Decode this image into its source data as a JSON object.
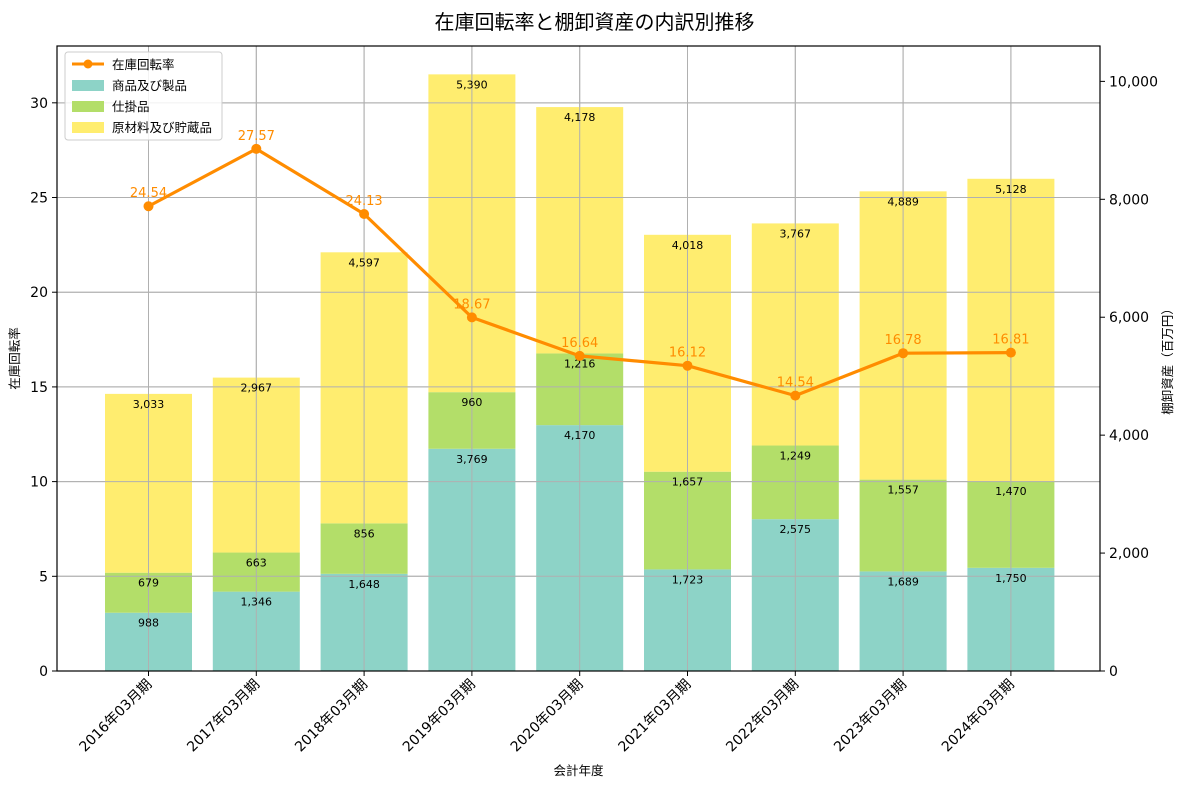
{
  "chart_data": {
    "type": "bar",
    "subtype": "stacked bar + line (dual axis)",
    "title": "在庫回転率と棚卸資産の内訳別推移",
    "xlabel": "会計年度",
    "ylabel": "在庫回転率",
    "ylabel_right": "棚卸資産（百万円）",
    "ylim": [
      0,
      33
    ],
    "ylim_right": [
      0,
      10600
    ],
    "yticks": [
      0,
      5,
      10,
      15,
      20,
      25,
      30
    ],
    "yticks_right": [
      "0",
      "2,000",
      "4,000",
      "6,000",
      "8,000",
      "10,000"
    ],
    "yticks_right_values": [
      0,
      2000,
      4000,
      6000,
      8000,
      10000
    ],
    "grid": true,
    "legend_position": "upper left",
    "categories": [
      "2016年03月期",
      "2017年03月期",
      "2018年03月期",
      "2019年03月期",
      "2020年03月期",
      "2021年03月期",
      "2022年03月期",
      "2023年03月期",
      "2024年03月期"
    ],
    "series": [
      {
        "name": "商品及び製品",
        "type": "bar",
        "axis": "right",
        "color": "#8dd3c7",
        "values": [
          988,
          1346,
          1648,
          3769,
          4170,
          1723,
          2575,
          1689,
          1750
        ],
        "labels": [
          "988",
          "1,346",
          "1,648",
          "3,769",
          "4,170",
          "1,723",
          "2,575",
          "1,689",
          "1,750"
        ]
      },
      {
        "name": "仕掛品",
        "type": "bar",
        "axis": "right",
        "color": "#b3de69",
        "values": [
          679,
          663,
          856,
          960,
          1216,
          1657,
          1249,
          1557,
          1470
        ],
        "labels": [
          "679",
          "663",
          "856",
          "960",
          "1,216",
          "1,657",
          "1,249",
          "1,557",
          "1,470"
        ]
      },
      {
        "name": "原材料及び貯蔵品",
        "type": "bar",
        "axis": "right",
        "color": "#ffed6f",
        "values": [
          3033,
          2967,
          4597,
          5390,
          4178,
          4018,
          3767,
          4889,
          5128
        ],
        "labels": [
          "3,033",
          "2,967",
          "4,597",
          "5,390",
          "4,178",
          "4,018",
          "3,767",
          "4,889",
          "5,128"
        ]
      },
      {
        "name": "在庫回転率",
        "type": "line",
        "axis": "left",
        "color": "#ff8c00",
        "values": [
          24.54,
          27.57,
          24.13,
          18.67,
          16.64,
          16.12,
          14.54,
          16.78,
          16.81
        ],
        "labels": [
          "24.54",
          "27.57",
          "24.13",
          "18.67",
          "16.64",
          "16.12",
          "14.54",
          "16.78",
          "16.81"
        ]
      }
    ]
  }
}
